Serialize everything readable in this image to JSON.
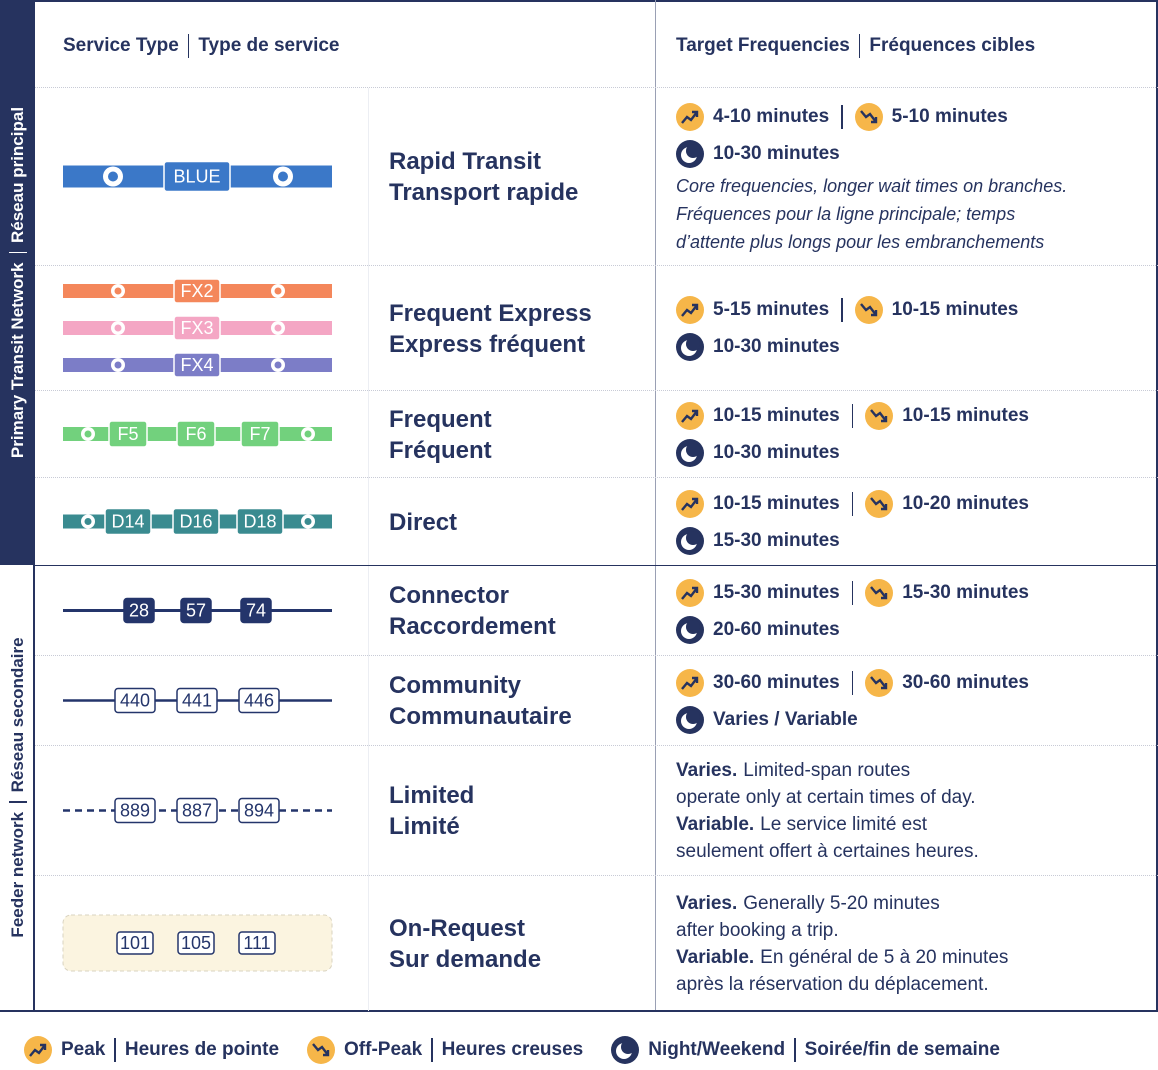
{
  "side_labels": {
    "primary": "Primary Transit Network",
    "primary_fr": "Réseau principal",
    "feeder": "Feeder network",
    "feeder_fr": "Réseau secondaire"
  },
  "header": {
    "service_type": "Service Type",
    "service_type_fr": "Type de service",
    "frequencies": "Target Frequencies",
    "frequencies_fr": "Fréquences cibles"
  },
  "rows": [
    {
      "style": "rapid",
      "lines": [
        {
          "color": "#3b78c8",
          "routes": [
            "BLUE"
          ]
        }
      ],
      "names": [
        "Rapid Transit",
        "Transport rapide"
      ],
      "freq": {
        "peak": "4-10 minutes",
        "offpeak": "5-10 minutes",
        "night": "10-30 minutes"
      },
      "notes": [
        "Core frequencies, longer wait times on branches.",
        "Fréquences pour la ligne principale; temps",
        "d’attente plus longs pour les embranchements"
      ]
    },
    {
      "style": "express",
      "lines": [
        {
          "color": "#f4875b",
          "routes": [
            "FX2"
          ]
        },
        {
          "color": "#f4a6c4",
          "routes": [
            "FX3"
          ]
        },
        {
          "color": "#7c7dc7",
          "routes": [
            "FX4"
          ]
        }
      ],
      "names": [
        "Frequent Express",
        "Express fréquent"
      ],
      "freq": {
        "peak": "5-15 minutes",
        "offpeak": "10-15 minutes",
        "night": "10-30 minutes"
      }
    },
    {
      "style": "frequent",
      "lines": [
        {
          "color": "#72d17d",
          "routes": [
            "F5",
            "F6",
            "F7"
          ]
        }
      ],
      "names": [
        "Frequent",
        "Fréquent"
      ],
      "freq": {
        "peak": "10-15 minutes",
        "offpeak": "10-15 minutes",
        "night": "10-30 minutes"
      }
    },
    {
      "style": "frequent",
      "lines": [
        {
          "color": "#3a8b90",
          "routes": [
            "D14",
            "D16",
            "D18"
          ]
        }
      ],
      "names": [
        "Direct"
      ],
      "freq": {
        "peak": "10-15 minutes",
        "offpeak": "10-20 minutes",
        "night": "15-30 minutes"
      }
    },
    {
      "style": "connector",
      "lines": [
        {
          "color": "#24356b",
          "routes": [
            "28",
            "57",
            "74"
          ]
        }
      ],
      "names": [
        "Connector",
        "Raccordement"
      ],
      "freq": {
        "peak": "15-30 minutes",
        "offpeak": "15-30 minutes",
        "night": "20-60 minutes"
      }
    },
    {
      "style": "community",
      "lines": [
        {
          "color": "#24356b",
          "routes": [
            "440",
            "441",
            "446"
          ]
        }
      ],
      "names": [
        "Community",
        "Communautaire"
      ],
      "freq": {
        "peak": "30-60 minutes",
        "offpeak": "30-60 minutes",
        "night": "Varies / Variable"
      }
    },
    {
      "style": "limited",
      "lines": [
        {
          "color": "#24356b",
          "routes": [
            "889",
            "887",
            "894"
          ]
        }
      ],
      "names": [
        "Limited",
        "Limité"
      ],
      "paragraphs": [
        {
          "bold": "Varies.",
          "lines": [
            "Limited-span routes",
            "operate only at certain times of day."
          ]
        },
        {
          "bold": "Variable.",
          "lines": [
            "Le service limité est",
            "seulement offert à certaines heures."
          ]
        }
      ]
    },
    {
      "style": "request",
      "lines": [
        {
          "color": "#24356b",
          "routes": [
            "101",
            "105",
            "111"
          ]
        }
      ],
      "names": [
        "On-Request",
        "Sur demande"
      ],
      "paragraphs": [
        {
          "bold": "Varies.",
          "lines": [
            "Generally 5-20 minutes",
            "after booking a trip."
          ]
        },
        {
          "bold": "Variable.",
          "lines": [
            "En général de 5 à 20 minutes",
            "après la réservation du déplacement."
          ]
        }
      ]
    }
  ],
  "legend": {
    "peak": {
      "en": "Peak",
      "fr": "Heures de pointe"
    },
    "offpeak": {
      "en": "Off-Peak",
      "fr": "Heures creuses"
    },
    "night": {
      "en": "Night/Weekend",
      "fr": "Soirée/fin de semaine"
    }
  }
}
